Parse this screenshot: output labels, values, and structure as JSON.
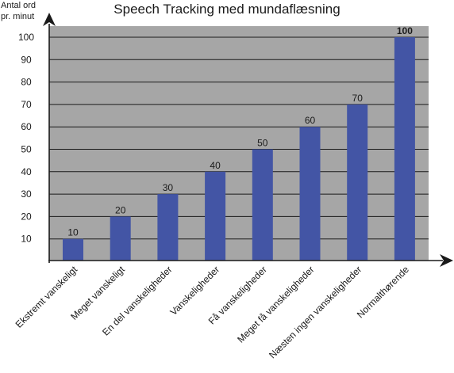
{
  "chart_data": {
    "type": "bar",
    "title": "Speech Tracking med mundaflæsning",
    "ylabel": [
      "Antal ord",
      "pr. minut"
    ],
    "xlabel": "",
    "categories": [
      "Ekstremt vanskeligt",
      "Meget vanskeligt",
      "En del vanskeligheder",
      "Vanskeligheder",
      "Få vanskeligheder",
      "Meget få vanskeligheder",
      "Næsten ingen vanskeligheder",
      "Normalthørende"
    ],
    "values": [
      10,
      20,
      30,
      40,
      50,
      60,
      70,
      100
    ],
    "data_labels": [
      "10",
      "20",
      "30",
      "40",
      "50",
      "60",
      "70",
      "100"
    ],
    "bold_labels": [
      false,
      false,
      false,
      false,
      false,
      false,
      false,
      true
    ],
    "yticks": [
      10,
      20,
      30,
      40,
      50,
      60,
      70,
      80,
      90,
      100
    ],
    "ylim": [
      0,
      100
    ],
    "grid": true,
    "colors": {
      "bar": "#4355a5",
      "plot_background": "#a6a6a6",
      "grid": "#1a1a1a",
      "axis": "#1a1a1a"
    }
  }
}
